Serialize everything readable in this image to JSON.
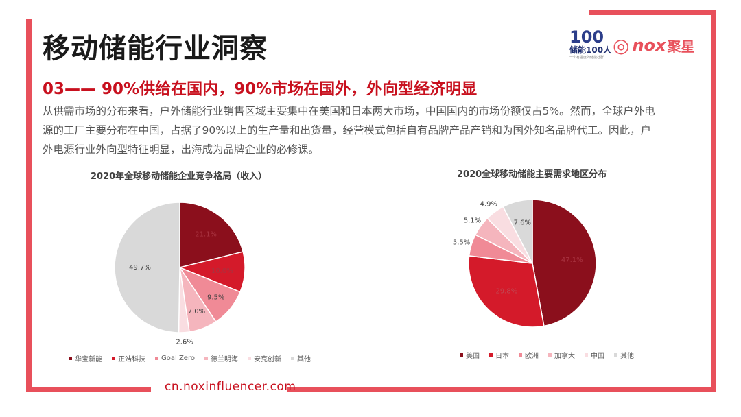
{
  "header": {
    "title": "移动储能行业洞察",
    "subtitle": "03—— 90%供给在国内，90%市场在国外，外向型经济明显",
    "paragraph": "从供需市场的分布来看，户外储能行业销售区域主要集中在美国和日本两大市场，中国国内的市场份额仅占5%。然而，全球户外电源的工厂主要分布在中国，占据了90%以上的生产量和出货量，经营模式包括自有品牌产品产销和为国外知名品牌代工。因此，户外电源行业外向型特征明显，出海成为品牌企业的必修课。"
  },
  "logos": {
    "left_mark": "100",
    "left_label": "储能100人",
    "left_tagline": "一个有温度的储能社群",
    "right_word": "nox",
    "right_cn": "聚星"
  },
  "footer": {
    "url": "cn.noxinfluencer.com"
  },
  "colors": {
    "frame": "#e8505b",
    "accent_text": "#c8101e"
  },
  "chart_data": [
    {
      "type": "pie",
      "title": "2020年全球移动储能企业竞争格局（收入）",
      "categories": [
        "华宝新能",
        "正浩科技",
        "Goal Zero",
        "德兰明海",
        "安克创新",
        "其他"
      ],
      "values": [
        21.1,
        10.0,
        9.5,
        7.0,
        2.6,
        49.7
      ],
      "labels": [
        "21.1%",
        "10.0%",
        "9.5%",
        "7.0%",
        "2.6%",
        "49.7%"
      ],
      "colors": [
        "#8b0f1c",
        "#d41a2a",
        "#f08a96",
        "#f5b5bd",
        "#f9dde1",
        "#d9d9d9"
      ],
      "legend": "bottom"
    },
    {
      "type": "pie",
      "title": "2020全球移动储能主要需求地区分布",
      "categories": [
        "美国",
        "日本",
        "欧洲",
        "加拿大",
        "中国",
        "其他"
      ],
      "values": [
        47.1,
        29.8,
        5.5,
        5.1,
        4.9,
        7.6
      ],
      "labels": [
        "47.1%",
        "29.8%",
        "5.5%",
        "5.1%",
        "4.9%",
        "7.6%"
      ],
      "colors": [
        "#8b0f1c",
        "#d41a2a",
        "#f08a96",
        "#f5b5bd",
        "#f9dde1",
        "#d9d9d9"
      ],
      "legend": "bottom"
    }
  ]
}
